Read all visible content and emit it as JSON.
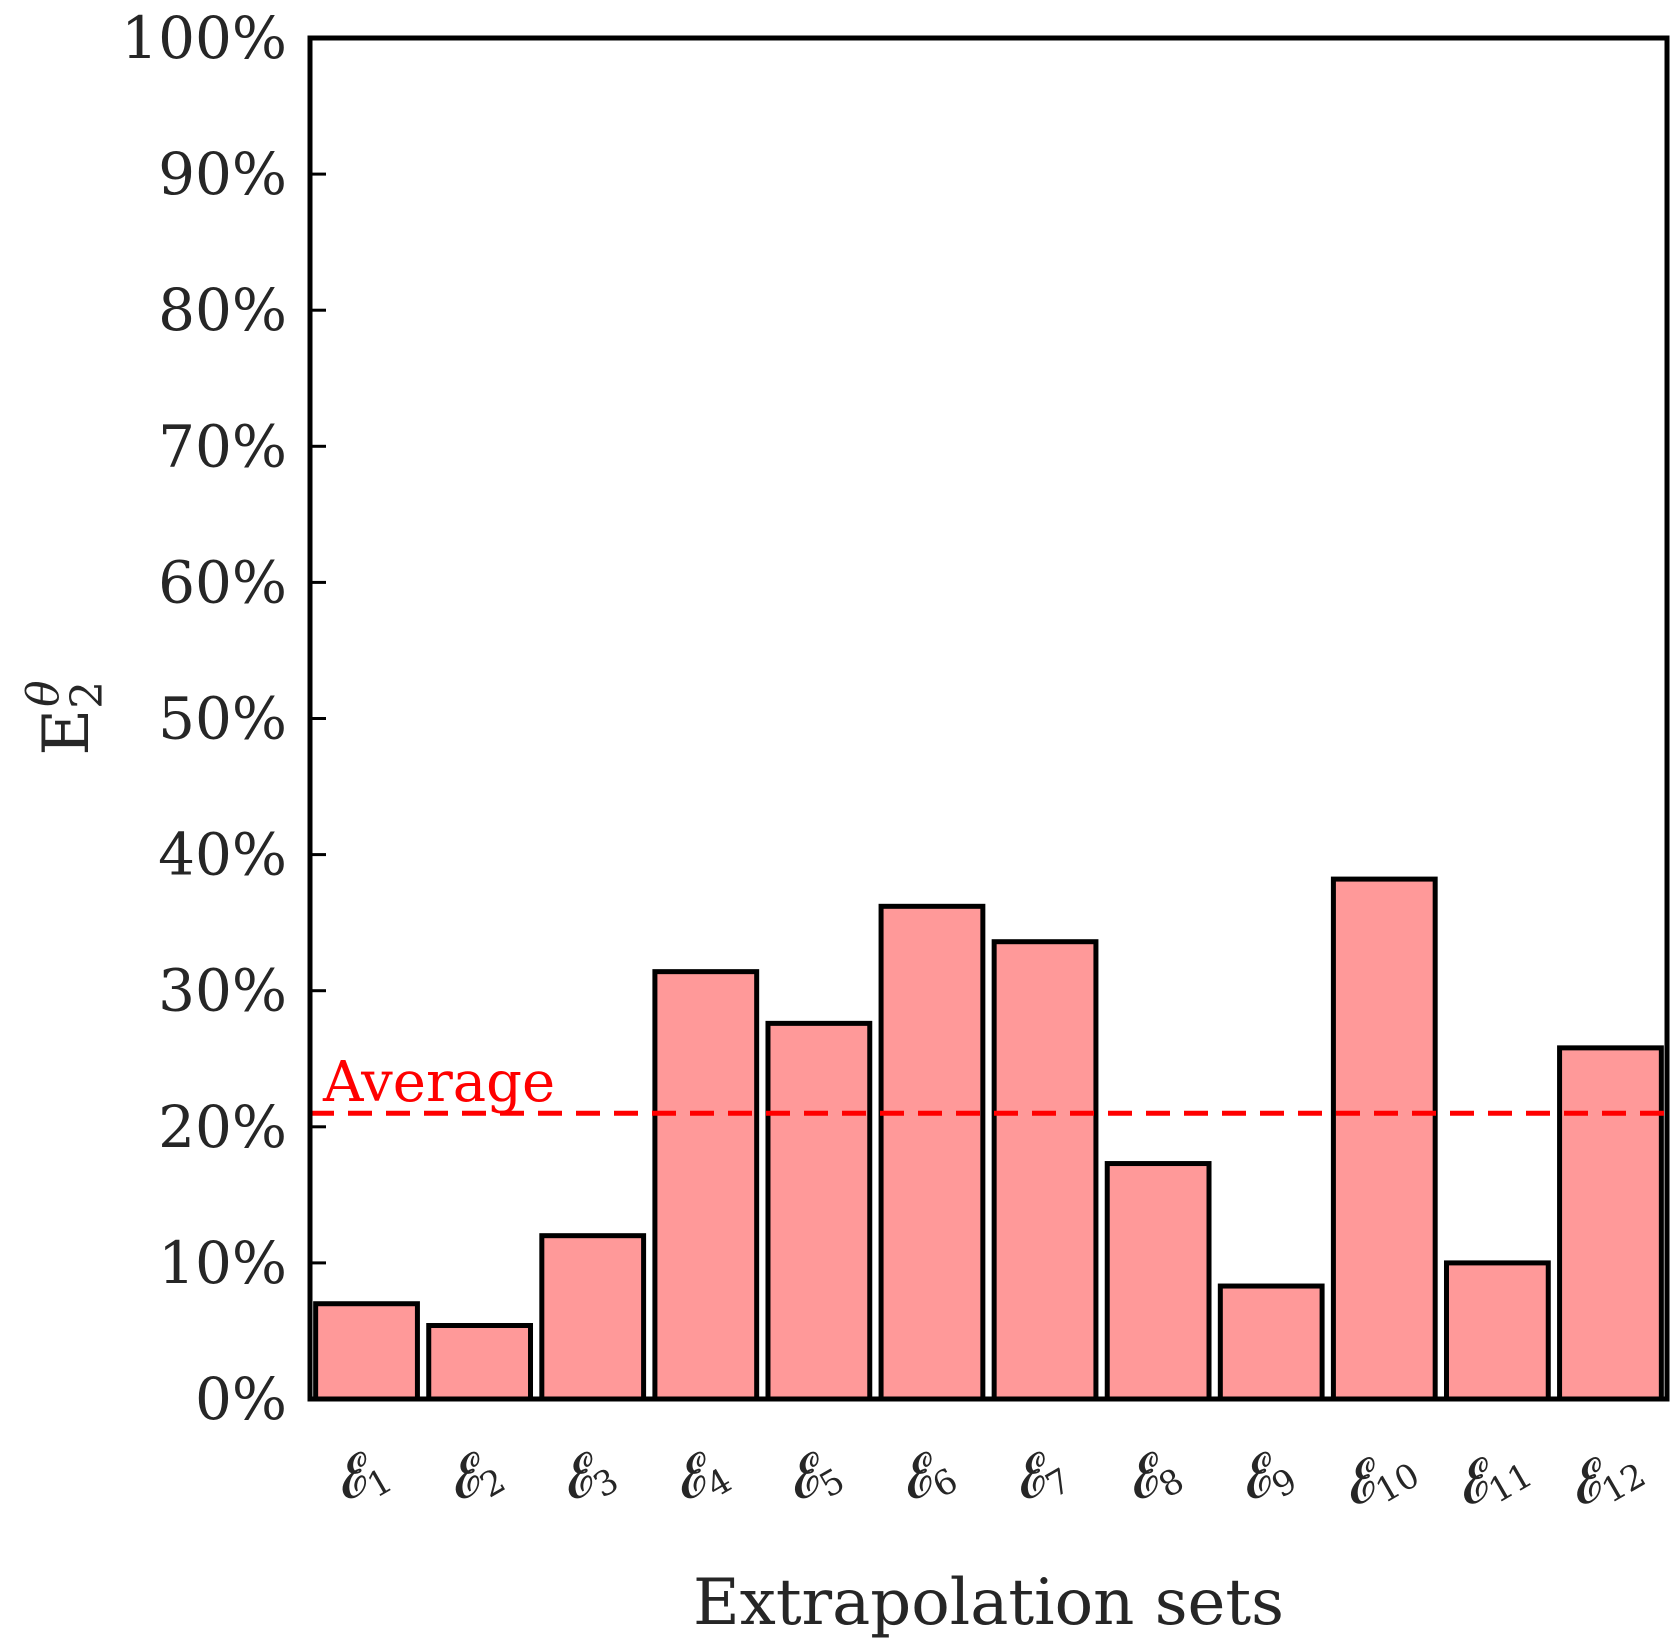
{
  "chart_data": {
    "type": "bar",
    "categories": [
      "𝓔1",
      "𝓔2",
      "𝓔3",
      "𝓔4",
      "𝓔5",
      "𝓔6",
      "𝓔7",
      "𝓔8",
      "𝓔9",
      "𝓔10",
      "𝓔11",
      "𝓔12"
    ],
    "values": [
      7.0,
      5.4,
      12.0,
      31.4,
      27.6,
      36.2,
      33.6,
      17.3,
      8.3,
      38.2,
      10.0,
      25.8
    ],
    "xlabel": "Extrapolation sets",
    "ylabel": "E₂^θ",
    "ylabel_main": "E",
    "ylabel_sub": "2",
    "ylabel_sup": "θ",
    "ylim": [
      0,
      100
    ],
    "yticks": [
      "0%",
      "10%",
      "20%",
      "30%",
      "40%",
      "50%",
      "60%",
      "70%",
      "80%",
      "90%",
      "100%"
    ],
    "ytick_values": [
      0,
      10,
      20,
      30,
      40,
      50,
      60,
      70,
      80,
      90,
      100
    ],
    "average": {
      "label": "Average",
      "value": 21.0,
      "color": "#ff0000"
    },
    "bar_color": "#ff9999",
    "bar_edge_color": "#000000",
    "grid": false
  }
}
